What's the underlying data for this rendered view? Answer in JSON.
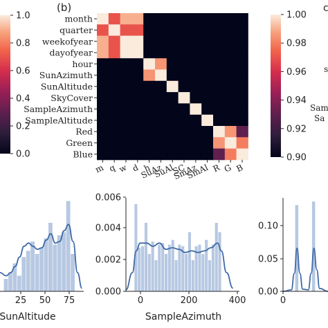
{
  "chart_data": [
    {
      "type": "colorbar",
      "colormap": "rocket",
      "ticks": [
        "0.0",
        "0.2",
        "0.4",
        "0.6",
        "0.8",
        "1.0"
      ],
      "range": [
        0,
        1
      ]
    },
    {
      "type": "heatmap",
      "panel_label": "(b)",
      "row_labels": [
        "month",
        "quarter",
        "weekofyear",
        "dayofyear",
        "hour",
        "SunAzimuth",
        "SunAltitude",
        "SkyCover",
        "SampleAzimuth",
        "SampleAltitude",
        "Red",
        "Green",
        "Blue"
      ],
      "col_labels": [
        "m",
        "q",
        "w",
        "d",
        "h",
        "SuAz",
        "SuAl",
        "SC",
        "SmAz",
        "SmAl",
        "R",
        "G",
        "B"
      ],
      "matrix": [
        [
          1.0,
          0.97,
          0.99,
          0.99,
          0.9,
          0.9,
          0.9,
          0.9,
          0.9,
          0.9,
          0.9,
          0.9,
          0.9
        ],
        [
          0.97,
          1.0,
          0.97,
          0.97,
          0.9,
          0.9,
          0.9,
          0.9,
          0.9,
          0.9,
          0.9,
          0.9,
          0.9
        ],
        [
          0.99,
          0.97,
          1.0,
          1.0,
          0.9,
          0.9,
          0.9,
          0.9,
          0.9,
          0.9,
          0.9,
          0.9,
          0.9
        ],
        [
          0.99,
          0.97,
          1.0,
          1.0,
          0.9,
          0.9,
          0.9,
          0.9,
          0.9,
          0.9,
          0.9,
          0.9,
          0.9
        ],
        [
          0.9,
          0.9,
          0.9,
          0.9,
          1.0,
          0.985,
          0.9,
          0.9,
          0.9,
          0.9,
          0.9,
          0.9,
          0.9
        ],
        [
          0.9,
          0.9,
          0.9,
          0.9,
          0.985,
          1.0,
          0.9,
          0.9,
          0.9,
          0.9,
          0.9,
          0.9,
          0.9
        ],
        [
          0.9,
          0.9,
          0.9,
          0.9,
          0.9,
          0.9,
          1.0,
          0.9,
          0.9,
          0.9,
          0.9,
          0.9,
          0.9
        ],
        [
          0.9,
          0.9,
          0.9,
          0.9,
          0.9,
          0.9,
          0.9,
          1.0,
          0.9,
          0.9,
          0.9,
          0.9,
          0.9
        ],
        [
          0.9,
          0.9,
          0.9,
          0.9,
          0.9,
          0.9,
          0.9,
          0.9,
          1.0,
          0.9,
          0.9,
          0.9,
          0.9
        ],
        [
          0.9,
          0.9,
          0.9,
          0.9,
          0.9,
          0.9,
          0.9,
          0.9,
          0.9,
          1.0,
          0.9,
          0.9,
          0.9
        ],
        [
          0.9,
          0.9,
          0.9,
          0.9,
          0.9,
          0.9,
          0.9,
          0.9,
          0.9,
          0.9,
          1.0,
          0.985,
          0.93
        ],
        [
          0.9,
          0.9,
          0.9,
          0.9,
          0.9,
          0.9,
          0.9,
          0.9,
          0.9,
          0.9,
          0.985,
          1.0,
          0.98
        ],
        [
          0.9,
          0.9,
          0.9,
          0.9,
          0.9,
          0.9,
          0.9,
          0.9,
          0.9,
          0.9,
          0.93,
          0.98,
          1.0
        ]
      ],
      "colorbar": {
        "range": [
          0.9,
          1.0
        ],
        "ticks": [
          "0.90",
          "0.92",
          "0.94",
          "0.96",
          "0.98",
          "1.00"
        ]
      }
    },
    {
      "type": "histogram",
      "xlabel": "SunAltitude",
      "xticks": [
        "25",
        "50",
        "75"
      ],
      "xlim": [
        -12,
        82
      ],
      "ylim": [
        0,
        0.03
      ],
      "bins": [
        {
          "x": -5,
          "y": 0.004
        },
        {
          "x": 0,
          "y": 0.006
        },
        {
          "x": 5,
          "y": 0.009
        },
        {
          "x": 10,
          "y": 0.005
        },
        {
          "x": 15,
          "y": 0.011
        },
        {
          "x": 20,
          "y": 0.013
        },
        {
          "x": 25,
          "y": 0.016
        },
        {
          "x": 30,
          "y": 0.012
        },
        {
          "x": 35,
          "y": 0.014
        },
        {
          "x": 40,
          "y": 0.017
        },
        {
          "x": 45,
          "y": 0.022
        },
        {
          "x": 50,
          "y": 0.015
        },
        {
          "x": 55,
          "y": 0.018
        },
        {
          "x": 60,
          "y": 0.019
        },
        {
          "x": 65,
          "y": 0.029
        },
        {
          "x": 70,
          "y": 0.012
        }
      ],
      "kde": [
        {
          "x": -12,
          "y": 0.006
        },
        {
          "x": -5,
          "y": 0.005
        },
        {
          "x": 0,
          "y": 0.006
        },
        {
          "x": 5,
          "y": 0.008
        },
        {
          "x": 10,
          "y": 0.011
        },
        {
          "x": 15,
          "y": 0.0145
        },
        {
          "x": 20,
          "y": 0.0155
        },
        {
          "x": 25,
          "y": 0.0145
        },
        {
          "x": 30,
          "y": 0.0135
        },
        {
          "x": 35,
          "y": 0.014
        },
        {
          "x": 40,
          "y": 0.0165
        },
        {
          "x": 45,
          "y": 0.0185
        },
        {
          "x": 50,
          "y": 0.0155
        },
        {
          "x": 55,
          "y": 0.016
        },
        {
          "x": 60,
          "y": 0.0195
        },
        {
          "x": 65,
          "y": 0.0215
        },
        {
          "x": 70,
          "y": 0.016
        },
        {
          "x": 75,
          "y": 0.006
        },
        {
          "x": 80,
          "y": 0.001
        }
      ]
    },
    {
      "type": "histogram",
      "xlabel": "SampleAzimuth",
      "xticks": [
        "0",
        "200",
        "400"
      ],
      "yticks": [
        "0.000",
        "0.002",
        "0.004",
        "0.006"
      ],
      "xlim": [
        -40,
        400
      ],
      "ylim": [
        0,
        0.006
      ],
      "bins": [
        {
          "x": 0,
          "y": 0.0056
        },
        {
          "x": 13,
          "y": 0.0028
        },
        {
          "x": 26,
          "y": 0.0029
        },
        {
          "x": 39,
          "y": 0.0044
        },
        {
          "x": 52,
          "y": 0.0024
        },
        {
          "x": 65,
          "y": 0.0032
        },
        {
          "x": 78,
          "y": 0.002
        },
        {
          "x": 91,
          "y": 0.003
        },
        {
          "x": 104,
          "y": 0.0031
        },
        {
          "x": 117,
          "y": 0.0024
        },
        {
          "x": 130,
          "y": 0.003
        },
        {
          "x": 143,
          "y": 0.0033
        },
        {
          "x": 156,
          "y": 0.002
        },
        {
          "x": 169,
          "y": 0.003
        },
        {
          "x": 182,
          "y": 0.0029
        },
        {
          "x": 195,
          "y": 0.0024
        },
        {
          "x": 208,
          "y": 0.0038
        },
        {
          "x": 221,
          "y": 0.002
        },
        {
          "x": 234,
          "y": 0.0029
        },
        {
          "x": 247,
          "y": 0.003
        },
        {
          "x": 260,
          "y": 0.0024
        },
        {
          "x": 273,
          "y": 0.0033
        },
        {
          "x": 286,
          "y": 0.002
        },
        {
          "x": 299,
          "y": 0.003
        },
        {
          "x": 312,
          "y": 0.0044
        },
        {
          "x": 325,
          "y": 0.0038
        }
      ],
      "kde": [
        {
          "x": -40,
          "y": 0.0001
        },
        {
          "x": -15,
          "y": 0.0012
        },
        {
          "x": 0,
          "y": 0.0026
        },
        {
          "x": 15,
          "y": 0.0031
        },
        {
          "x": 40,
          "y": 0.0031
        },
        {
          "x": 65,
          "y": 0.0029
        },
        {
          "x": 90,
          "y": 0.0031
        },
        {
          "x": 115,
          "y": 0.0027
        },
        {
          "x": 140,
          "y": 0.0028
        },
        {
          "x": 165,
          "y": 0.0027
        },
        {
          "x": 190,
          "y": 0.0025
        },
        {
          "x": 215,
          "y": 0.0026
        },
        {
          "x": 240,
          "y": 0.0025
        },
        {
          "x": 265,
          "y": 0.0026
        },
        {
          "x": 290,
          "y": 0.0028
        },
        {
          "x": 315,
          "y": 0.0031
        },
        {
          "x": 330,
          "y": 0.0026
        },
        {
          "x": 350,
          "y": 0.0012
        },
        {
          "x": 375,
          "y": 0.0002
        }
      ]
    },
    {
      "type": "histogram",
      "xticks": [
        "0"
      ],
      "yticks": [
        "0.00",
        "0.05",
        "0.10"
      ],
      "xlim": [
        -2,
        14
      ],
      "ylim": [
        0,
        0.13
      ],
      "bins": [
        {
          "x": 3,
          "y": 0.12
        },
        {
          "x": 9,
          "y": 0.125
        }
      ],
      "kde": [
        {
          "x": -2,
          "y": 0.0
        },
        {
          "x": 1,
          "y": 0.002
        },
        {
          "x": 2,
          "y": 0.025
        },
        {
          "x": 3,
          "y": 0.06
        },
        {
          "x": 4,
          "y": 0.025
        },
        {
          "x": 5,
          "y": 0.003
        },
        {
          "x": 7,
          "y": 0.002
        },
        {
          "x": 8,
          "y": 0.025
        },
        {
          "x": 9,
          "y": 0.06
        },
        {
          "x": 10,
          "y": 0.03
        },
        {
          "x": 11,
          "y": 0.004
        },
        {
          "x": 14,
          "y": 0.0
        }
      ]
    }
  ]
}
